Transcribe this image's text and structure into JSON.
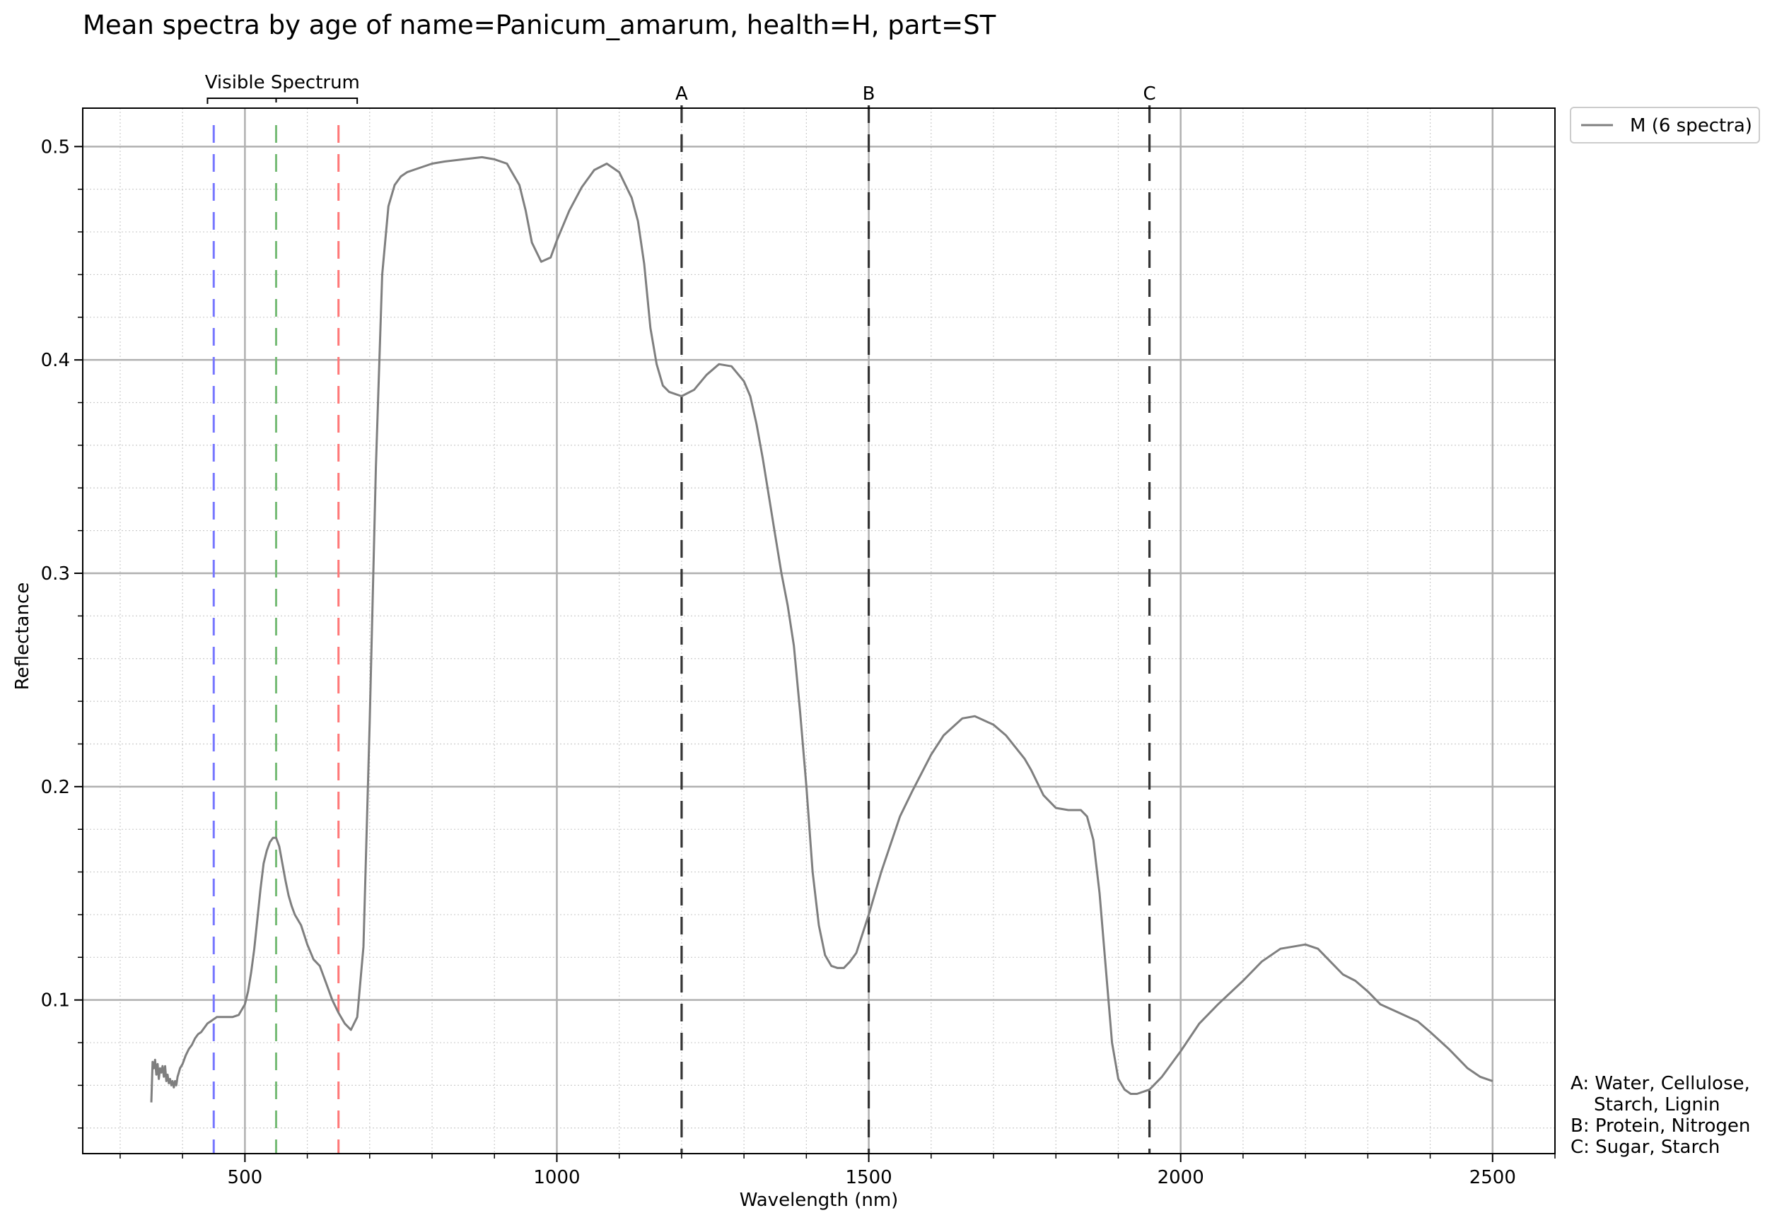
{
  "chart_data": {
    "type": "line",
    "title": "Mean spectra by age of name=Panicum_amarum, health=H, part=ST",
    "xlabel": "Wavelength (nm)",
    "ylabel": "Reflectance",
    "xlim": [
      240,
      2600
    ],
    "ylim": [
      0.028,
      0.518
    ],
    "x_ticks": [
      500,
      1000,
      1500,
      2000,
      2500
    ],
    "x_tick_labels": [
      "500",
      "1000",
      "1500",
      "2000",
      "2500"
    ],
    "y_ticks": [
      0.1,
      0.2,
      0.3,
      0.4,
      0.5
    ],
    "y_tick_labels": [
      "0.1",
      "0.2",
      "0.3",
      "0.4",
      "0.5"
    ],
    "grid": true,
    "minor_grid": true,
    "legend_position": "outside top-right",
    "series": [
      {
        "name": "M (6 spectra)",
        "color": "#7f7f7f",
        "x": [
          350,
          352,
          354,
          356,
          358,
          360,
          362,
          364,
          366,
          368,
          370,
          372,
          374,
          376,
          378,
          380,
          382,
          384,
          386,
          388,
          390,
          392,
          394,
          396,
          398,
          400,
          405,
          410,
          415,
          420,
          425,
          430,
          435,
          440,
          445,
          450,
          455,
          460,
          470,
          480,
          490,
          500,
          505,
          510,
          515,
          520,
          525,
          530,
          535,
          540,
          545,
          550,
          555,
          560,
          565,
          570,
          575,
          580,
          590,
          600,
          610,
          620,
          630,
          640,
          650,
          660,
          670,
          680,
          690,
          700,
          710,
          720,
          730,
          740,
          750,
          760,
          770,
          780,
          800,
          820,
          850,
          880,
          900,
          920,
          940,
          950,
          960,
          975,
          990,
          1000,
          1020,
          1040,
          1060,
          1080,
          1100,
          1120,
          1130,
          1140,
          1150,
          1160,
          1170,
          1180,
          1200,
          1220,
          1240,
          1260,
          1280,
          1300,
          1310,
          1320,
          1330,
          1340,
          1350,
          1360,
          1370,
          1380,
          1390,
          1400,
          1410,
          1420,
          1430,
          1440,
          1450,
          1460,
          1470,
          1480,
          1500,
          1520,
          1550,
          1570,
          1600,
          1620,
          1650,
          1670,
          1700,
          1720,
          1750,
          1760,
          1780,
          1800,
          1820,
          1840,
          1850,
          1860,
          1870,
          1880,
          1890,
          1900,
          1910,
          1920,
          1930,
          1950,
          1970,
          2000,
          2030,
          2060,
          2100,
          2130,
          2160,
          2200,
          2220,
          2240,
          2260,
          2280,
          2300,
          2320,
          2350,
          2380,
          2400,
          2430,
          2460,
          2480,
          2500
        ],
        "y": [
          0.052,
          0.071,
          0.068,
          0.072,
          0.065,
          0.07,
          0.063,
          0.068,
          0.066,
          0.069,
          0.064,
          0.069,
          0.062,
          0.065,
          0.061,
          0.063,
          0.06,
          0.062,
          0.059,
          0.062,
          0.06,
          0.064,
          0.066,
          0.068,
          0.069,
          0.07,
          0.074,
          0.077,
          0.079,
          0.082,
          0.084,
          0.085,
          0.087,
          0.089,
          0.09,
          0.091,
          0.092,
          0.092,
          0.092,
          0.092,
          0.093,
          0.098,
          0.104,
          0.113,
          0.124,
          0.138,
          0.152,
          0.164,
          0.17,
          0.174,
          0.176,
          0.176,
          0.172,
          0.164,
          0.156,
          0.149,
          0.144,
          0.14,
          0.135,
          0.126,
          0.119,
          0.116,
          0.108,
          0.1,
          0.094,
          0.089,
          0.086,
          0.092,
          0.125,
          0.23,
          0.35,
          0.44,
          0.472,
          0.482,
          0.486,
          0.488,
          0.489,
          0.49,
          0.492,
          0.493,
          0.494,
          0.495,
          0.494,
          0.492,
          0.482,
          0.47,
          0.455,
          0.446,
          0.448,
          0.456,
          0.47,
          0.481,
          0.489,
          0.492,
          0.488,
          0.476,
          0.465,
          0.445,
          0.415,
          0.398,
          0.388,
          0.385,
          0.383,
          0.386,
          0.393,
          0.398,
          0.397,
          0.39,
          0.383,
          0.37,
          0.354,
          0.336,
          0.318,
          0.3,
          0.285,
          0.266,
          0.235,
          0.2,
          0.16,
          0.135,
          0.121,
          0.116,
          0.115,
          0.115,
          0.118,
          0.122,
          0.14,
          0.16,
          0.186,
          0.198,
          0.215,
          0.224,
          0.232,
          0.233,
          0.229,
          0.224,
          0.213,
          0.208,
          0.196,
          0.19,
          0.189,
          0.189,
          0.186,
          0.175,
          0.15,
          0.115,
          0.08,
          0.063,
          0.058,
          0.056,
          0.056,
          0.058,
          0.064,
          0.076,
          0.089,
          0.098,
          0.109,
          0.118,
          0.124,
          0.126,
          0.124,
          0.118,
          0.112,
          0.109,
          0.104,
          0.098,
          0.094,
          0.09,
          0.085,
          0.077,
          0.068,
          0.064,
          0.062
        ]
      }
    ],
    "visible_bracket": {
      "label": "Visible Spectrum",
      "range": [
        440,
        680
      ],
      "center": 550
    },
    "visible_lines": [
      {
        "wavelength": 450,
        "color": "#7777ff"
      },
      {
        "wavelength": 550,
        "color": "#77bb77"
      },
      {
        "wavelength": 650,
        "color": "#ff7777"
      }
    ],
    "markers": [
      {
        "label": "A",
        "wavelength": 1200
      },
      {
        "label": "B",
        "wavelength": 1500
      },
      {
        "label": "C",
        "wavelength": 1950
      }
    ],
    "notes": [
      "A: Water, Cellulose,",
      "    Starch, Lignin",
      "B: Protein, Nitrogen",
      "C: Sugar, Starch"
    ]
  }
}
